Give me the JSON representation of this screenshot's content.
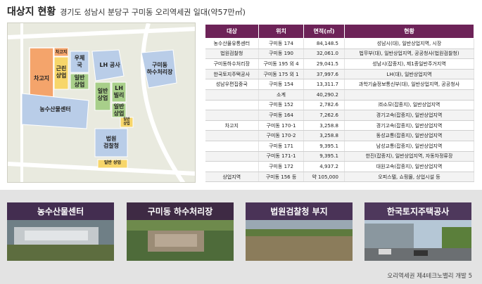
{
  "header": {
    "title": "대상지 현황",
    "subtitle": "경기도 성남시 분당구 구미동 오리역세권 일대(약57만㎡)"
  },
  "map_labels": {
    "chagoji": "차고지",
    "chagoji2": "차고지",
    "geunrin": "근린\n상업",
    "ucheguk": "우체\n국",
    "ilban1": "일반\n상업",
    "lh": "LH 공사",
    "gumi_hasu": "구미동\n하수처리장",
    "ilban2": "일반\n상업",
    "lh_ville": "LH\n빌리",
    "ilban3": "일반\n상업",
    "nonghyup": "농수산물센터",
    "court": "법원\n검찰청",
    "ilban4": "일반\n상업",
    "ilban_small": "일반\n상업"
  },
  "table": {
    "headers": [
      "대상",
      "위치",
      "면적(㎡)",
      "현황"
    ],
    "rows": [
      {
        "c1": "농수산물유통센터",
        "c2": "구미동 174",
        "c3": "84,148.5",
        "c4": "성남시(대), 일반상업지역, 시장"
      },
      {
        "c1": "법원검찰청",
        "c2": "구미동 190",
        "c3": "32,061.0",
        "c4": "법무부(대), 일반상업지역, 공공청사(법원검찰청)"
      },
      {
        "c1": "구미동하수처리장",
        "c2": "구미동 195 외 4",
        "c3": "29,041.5",
        "c4": "성남시(잡종지), 제1종일반주거지역"
      },
      {
        "c1": "한국토지주택공사",
        "c2": "구미동 175 외 1",
        "c3": "37,997.6",
        "c4": "LH(대), 일반상업지역"
      },
      {
        "c1": "성남우편집중국",
        "c2": "구미동 154",
        "c3": "13,311.7",
        "c4": "과학기술정보통신부(대), 일반상업지역, 공공청사"
      },
      {
        "c1": "",
        "c2": "소계",
        "c3": "40,290.2",
        "c4": ""
      },
      {
        "c1": "",
        "c2": "구미동 152",
        "c3": "2,782.6",
        "c4": "㈜소모(잡종지), 일반상업지역"
      },
      {
        "c1": "",
        "c2": "구미동 164",
        "c3": "7,262.6",
        "c4": "경기고속(잡종지), 일반상업지역"
      },
      {
        "c1": "차고지",
        "c2": "구미동 170-1",
        "c3": "3,258.8",
        "c4": "경기고속(잡종지), 일반상업지역"
      },
      {
        "c1": "",
        "c2": "구미동 170-2",
        "c3": "3,258.8",
        "c4": "동성교통(잡종지), 일반상업지역"
      },
      {
        "c1": "",
        "c2": "구미동 171",
        "c3": "9,395.1",
        "c4": "남성교통(잡종지), 일반상업지역"
      },
      {
        "c1": "",
        "c2": "구미동 171-1",
        "c3": "9,395.1",
        "c4": "한진(잡종지), 일반상업지역, 자동차정류장"
      },
      {
        "c1": "",
        "c2": "구미동 172",
        "c3": "4,937.2",
        "c4": "대원고속(잡종지), 일반상업지역"
      },
      {
        "c1": "상업지역",
        "c2": "구미동 156 등",
        "c3": "약 105,000",
        "c4": "오피스텔, 쇼핑몰, 상업시설 등"
      }
    ]
  },
  "cards": [
    "농수산물센터",
    "구미동 하수처리장",
    "법원검찰청 부지",
    "한국토지주택공사"
  ],
  "footer": "오리역세권 제4테크노밸리 개발  5",
  "colors": {
    "header_purple": "#6d2358",
    "zone_blue": "#b9cde8",
    "zone_orange": "#f4a46b",
    "zone_green": "#a8cf8a",
    "zone_yellow": "#f7d66a"
  }
}
